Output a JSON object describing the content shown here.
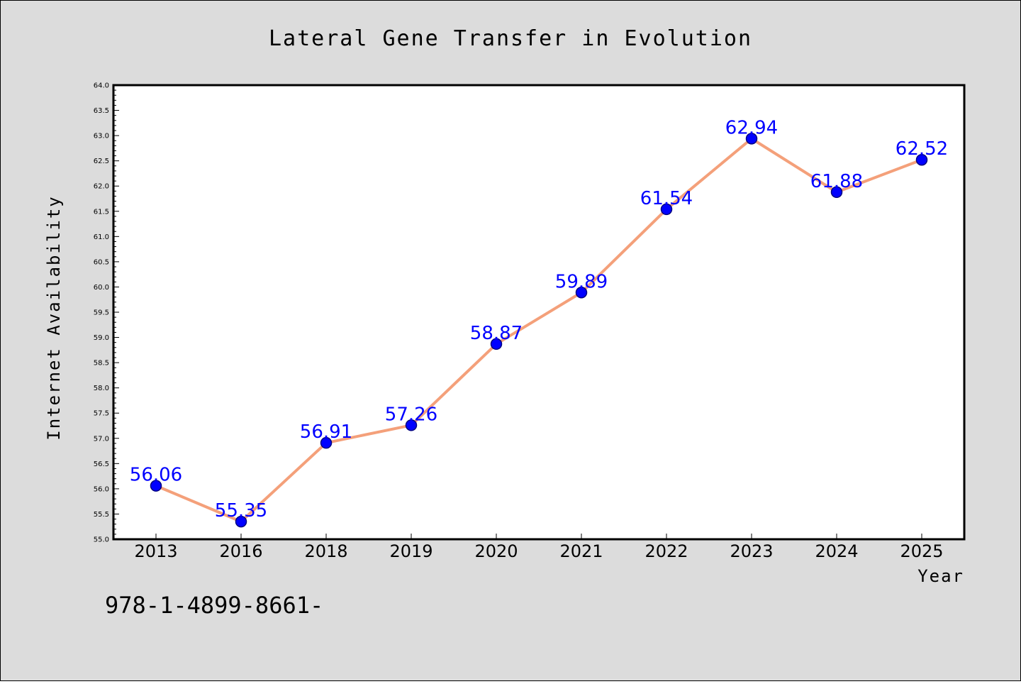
{
  "page": {
    "background": "#dcdcdc",
    "border_color": "#000000"
  },
  "footer": {
    "code": "978-1-4899-8661-"
  },
  "chart_data": {
    "type": "line",
    "title": "Lateral Gene Transfer in Evolution",
    "xlabel": "Year",
    "ylabel": "Internet Availability",
    "categories": [
      "2013",
      "2016",
      "2018",
      "2019",
      "2020",
      "2021",
      "2022",
      "2023",
      "2024",
      "2025"
    ],
    "values": [
      56.06,
      55.35,
      56.91,
      57.26,
      58.87,
      59.89,
      61.54,
      62.94,
      61.88,
      62.52
    ],
    "data_labels": [
      "56.06",
      "55.35",
      "56.91",
      "57.26",
      "58.87",
      "59.89",
      "61.54",
      "62.94",
      "61.88",
      "62.52"
    ],
    "ylim": [
      55.0,
      64.0
    ],
    "yticks": [
      "55.0",
      "55.5",
      "56.0",
      "56.5",
      "57.0",
      "57.5",
      "58.0",
      "58.5",
      "59.0",
      "59.5",
      "60.0",
      "60.5",
      "61.0",
      "61.5",
      "62.0",
      "62.5",
      "63.0",
      "63.5",
      "64.0"
    ],
    "grid": false,
    "colors": {
      "line": "#f4a07a",
      "marker_fill": "#0000ff",
      "marker_edge": "#000080",
      "data_label": "#0000ff",
      "plot_background": "#ffffff",
      "text": "#000000"
    }
  }
}
